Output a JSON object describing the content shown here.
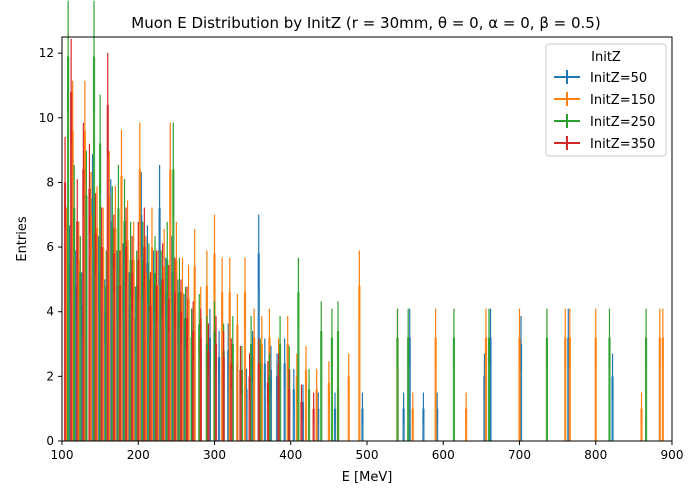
{
  "chart_data": {
    "type": "histogram",
    "title": "Muon E Distribution by InitZ (r = 30mm, θ = 0, α = 0, β = 0.5)",
    "xlabel": "E [MeV]",
    "ylabel": "Entries",
    "xlim": [
      100,
      900
    ],
    "ylim": [
      0,
      12.5
    ],
    "xticks": [
      100,
      200,
      300,
      400,
      500,
      600,
      700,
      800,
      900
    ],
    "yticks": [
      0,
      2,
      4,
      6,
      8,
      10,
      12
    ],
    "grid": false,
    "legend": {
      "title": "InitZ",
      "placement": "top-right"
    },
    "series": [
      {
        "name": "InitZ=50",
        "color": "#1f77b4",
        "x": [
          110,
          118,
          126,
          132,
          140,
          148,
          156,
          164,
          172,
          180,
          188,
          196,
          204,
          212,
          220,
          228,
          236,
          244,
          252,
          260,
          270,
          282,
          294,
          306,
          318,
          330,
          342,
          350,
          358,
          366,
          374,
          382,
          392,
          404,
          416,
          436,
          458,
          494,
          548,
          556,
          574,
          592,
          654,
          662,
          702,
          764,
          822
        ],
        "values": [
          5.5,
          4.8,
          4.2,
          6.2,
          7.5,
          5.2,
          4.0,
          6.8,
          4.8,
          5.0,
          4.2,
          3.8,
          7.0,
          5.5,
          4.8,
          7.2,
          4.6,
          5.2,
          4.0,
          3.6,
          3.2,
          2.8,
          3.2,
          2.6,
          2.8,
          2.4,
          1.6,
          2.6,
          5.8,
          2.4,
          2.2,
          2.0,
          2.4,
          1.6,
          1.2,
          1.0,
          1.0,
          1.0,
          1.0,
          3.2,
          1.0,
          1.0,
          2.0,
          3.2,
          3.0,
          3.2,
          2.0
        ]
      },
      {
        "name": "InitZ=150",
        "color": "#ff7f0e",
        "x": [
          106,
          114,
          122,
          130,
          138,
          146,
          154,
          162,
          170,
          178,
          186,
          194,
          202,
          210,
          218,
          226,
          234,
          242,
          250,
          258,
          266,
          274,
          282,
          290,
          300,
          310,
          320,
          330,
          340,
          352,
          362,
          372,
          384,
          396,
          408,
          420,
          434,
          450,
          462,
          476,
          490,
          540,
          560,
          590,
          630,
          656,
          700,
          760,
          766,
          800,
          860,
          884,
          888
        ],
        "values": [
          6.0,
          9.6,
          5.6,
          9.6,
          7.0,
          6.6,
          6.0,
          7.6,
          6.6,
          8.2,
          6.2,
          5.6,
          8.4,
          5.2,
          6.0,
          4.8,
          5.4,
          8.4,
          5.6,
          4.6,
          4.4,
          5.4,
          3.8,
          4.8,
          5.8,
          4.6,
          4.6,
          3.6,
          4.6,
          3.2,
          3.0,
          3.2,
          2.4,
          3.0,
          2.0,
          2.2,
          1.6,
          1.8,
          1.6,
          2.0,
          4.8,
          3.2,
          1.0,
          3.2,
          1.0,
          3.2,
          3.2,
          3.2,
          3.2,
          3.2,
          1.0,
          3.2,
          3.2
        ]
      },
      {
        "name": "InitZ=250",
        "color": "#2ca02c",
        "x": [
          108,
          116,
          124,
          132,
          142,
          150,
          158,
          166,
          174,
          182,
          190,
          198,
          206,
          214,
          222,
          230,
          238,
          246,
          254,
          262,
          270,
          280,
          290,
          300,
          312,
          324,
          336,
          348,
          360,
          372,
          386,
          398,
          410,
          424,
          440,
          454,
          462,
          540,
          554,
          614,
          660,
          736,
          818,
          866
        ],
        "values": [
          11.9,
          7.2,
          5.2,
          7.6,
          11.9,
          9.2,
          4.8,
          6.6,
          7.2,
          6.8,
          5.6,
          4.8,
          5.6,
          5.0,
          5.2,
          4.8,
          5.6,
          8.4,
          4.6,
          3.8,
          3.2,
          3.6,
          3.0,
          3.4,
          2.8,
          3.0,
          2.2,
          3.0,
          2.4,
          2.0,
          3.0,
          2.2,
          4.6,
          1.6,
          3.4,
          3.2,
          3.4,
          3.2,
          3.2,
          3.2,
          3.2,
          3.2,
          3.2,
          3.2
        ]
      },
      {
        "name": "InitZ=350",
        "color": "#d62728",
        "x": [
          104,
          112,
          120,
          128,
          136,
          144,
          152,
          160,
          168,
          176,
          184,
          192,
          200,
          208,
          216,
          224,
          232,
          240,
          248,
          256,
          264,
          272,
          282,
          292,
          302,
          312,
          322,
          334,
          346,
          358,
          370,
          384,
          398,
          414,
          430
        ],
        "values": [
          8.0,
          10.8,
          6.8,
          8.4,
          7.8,
          6.4,
          6.0,
          10.4,
          5.8,
          4.8,
          6.0,
          5.2,
          5.6,
          6.0,
          4.2,
          4.8,
          5.0,
          4.4,
          4.6,
          4.0,
          3.8,
          3.4,
          3.2,
          2.8,
          3.0,
          2.6,
          2.4,
          2.2,
          2.0,
          2.4,
          1.8,
          2.0,
          1.6,
          1.2,
          1.0
        ]
      }
    ]
  }
}
